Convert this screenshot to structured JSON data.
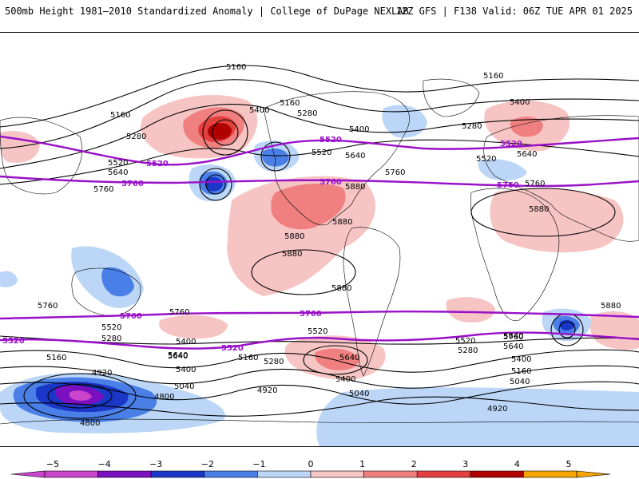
{
  "header": {
    "left_title": "500mb Height 1981–2010 Standardized Anomaly | College of DuPage NEXLAB",
    "right_title": "12Z GFS | F138 Valid: 06Z TUE APR 01 2025"
  },
  "colors": {
    "neg5": "#cc44cc",
    "neg4": "#7a10c0",
    "neg3": "#1b37c8",
    "neg2": "#4a7fe8",
    "neg1": "#bcd6f7",
    "zero": "#ffffff",
    "pos1": "#f7c4c4",
    "pos2": "#f08080",
    "pos3": "#e34040",
    "pos4": "#b00000",
    "pos5": "#f7a400",
    "contour": "#000000",
    "highlight_contour": "#9a10c8",
    "coast": "#000000"
  },
  "colorbar": {
    "ticks": [
      "−5",
      "−4",
      "−3",
      "−2",
      "−1",
      "0",
      "1",
      "2",
      "3",
      "4",
      "5"
    ]
  },
  "contour_labels": [
    {
      "text": "5160",
      "kind": "black"
    },
    {
      "text": "5160",
      "kind": "black"
    },
    {
      "text": "5160",
      "kind": "black"
    },
    {
      "text": "5160",
      "kind": "black"
    },
    {
      "text": "5280",
      "kind": "black"
    },
    {
      "text": "5280",
      "kind": "black"
    },
    {
      "text": "5280",
      "kind": "black"
    },
    {
      "text": "5400",
      "kind": "black"
    },
    {
      "text": "5400",
      "kind": "black"
    },
    {
      "text": "5400",
      "kind": "black"
    },
    {
      "text": "5520",
      "kind": "purple"
    },
    {
      "text": "5520",
      "kind": "purple"
    },
    {
      "text": "5520",
      "kind": "purple"
    },
    {
      "text": "5520",
      "kind": "purple"
    },
    {
      "text": "5520",
      "kind": "purple"
    },
    {
      "text": "5520",
      "kind": "black"
    },
    {
      "text": "5520",
      "kind": "black"
    },
    {
      "text": "5520",
      "kind": "black"
    },
    {
      "text": "5640",
      "kind": "black"
    },
    {
      "text": "5640",
      "kind": "black"
    },
    {
      "text": "5640",
      "kind": "black"
    },
    {
      "text": "5760",
      "kind": "purple"
    },
    {
      "text": "5760",
      "kind": "purple"
    },
    {
      "text": "5760",
      "kind": "purple"
    },
    {
      "text": "5760",
      "kind": "purple"
    },
    {
      "text": "5760",
      "kind": "purple"
    },
    {
      "text": "5760",
      "kind": "black"
    },
    {
      "text": "5760",
      "kind": "black"
    },
    {
      "text": "5760",
      "kind": "black"
    },
    {
      "text": "5880",
      "kind": "black"
    },
    {
      "text": "5880",
      "kind": "black"
    },
    {
      "text": "5880",
      "kind": "black"
    },
    {
      "text": "5880",
      "kind": "black"
    },
    {
      "text": "5880",
      "kind": "black"
    },
    {
      "text": "5880",
      "kind": "black"
    },
    {
      "text": "5760",
      "kind": "black"
    },
    {
      "text": "5640",
      "kind": "black"
    },
    {
      "text": "5520",
      "kind": "black"
    },
    {
      "text": "5400",
      "kind": "black"
    },
    {
      "text": "5280",
      "kind": "black"
    },
    {
      "text": "5160",
      "kind": "black"
    },
    {
      "text": "5040",
      "kind": "black"
    },
    {
      "text": "4920",
      "kind": "black"
    },
    {
      "text": "4920",
      "kind": "black"
    },
    {
      "text": "4920",
      "kind": "black"
    },
    {
      "text": "4800",
      "kind": "black"
    },
    {
      "text": "4800",
      "kind": "black"
    },
    {
      "text": "5040",
      "kind": "black"
    },
    {
      "text": "5040",
      "kind": "black"
    },
    {
      "text": "5160",
      "kind": "black"
    },
    {
      "text": "5160",
      "kind": "black"
    },
    {
      "text": "5280",
      "kind": "black"
    },
    {
      "text": "5280",
      "kind": "black"
    },
    {
      "text": "5400",
      "kind": "black"
    },
    {
      "text": "5400",
      "kind": "black"
    },
    {
      "text": "5400",
      "kind": "black"
    },
    {
      "text": "5520",
      "kind": "black"
    },
    {
      "text": "5520",
      "kind": "black"
    },
    {
      "text": "5640",
      "kind": "black"
    },
    {
      "text": "5640",
      "kind": "black"
    },
    {
      "text": "5640",
      "kind": "black"
    },
    {
      "text": "5640",
      "kind": "black"
    },
    {
      "text": "5760",
      "kind": "black"
    },
    {
      "text": "5760",
      "kind": "black"
    },
    {
      "text": "5880",
      "kind": "black"
    }
  ]
}
